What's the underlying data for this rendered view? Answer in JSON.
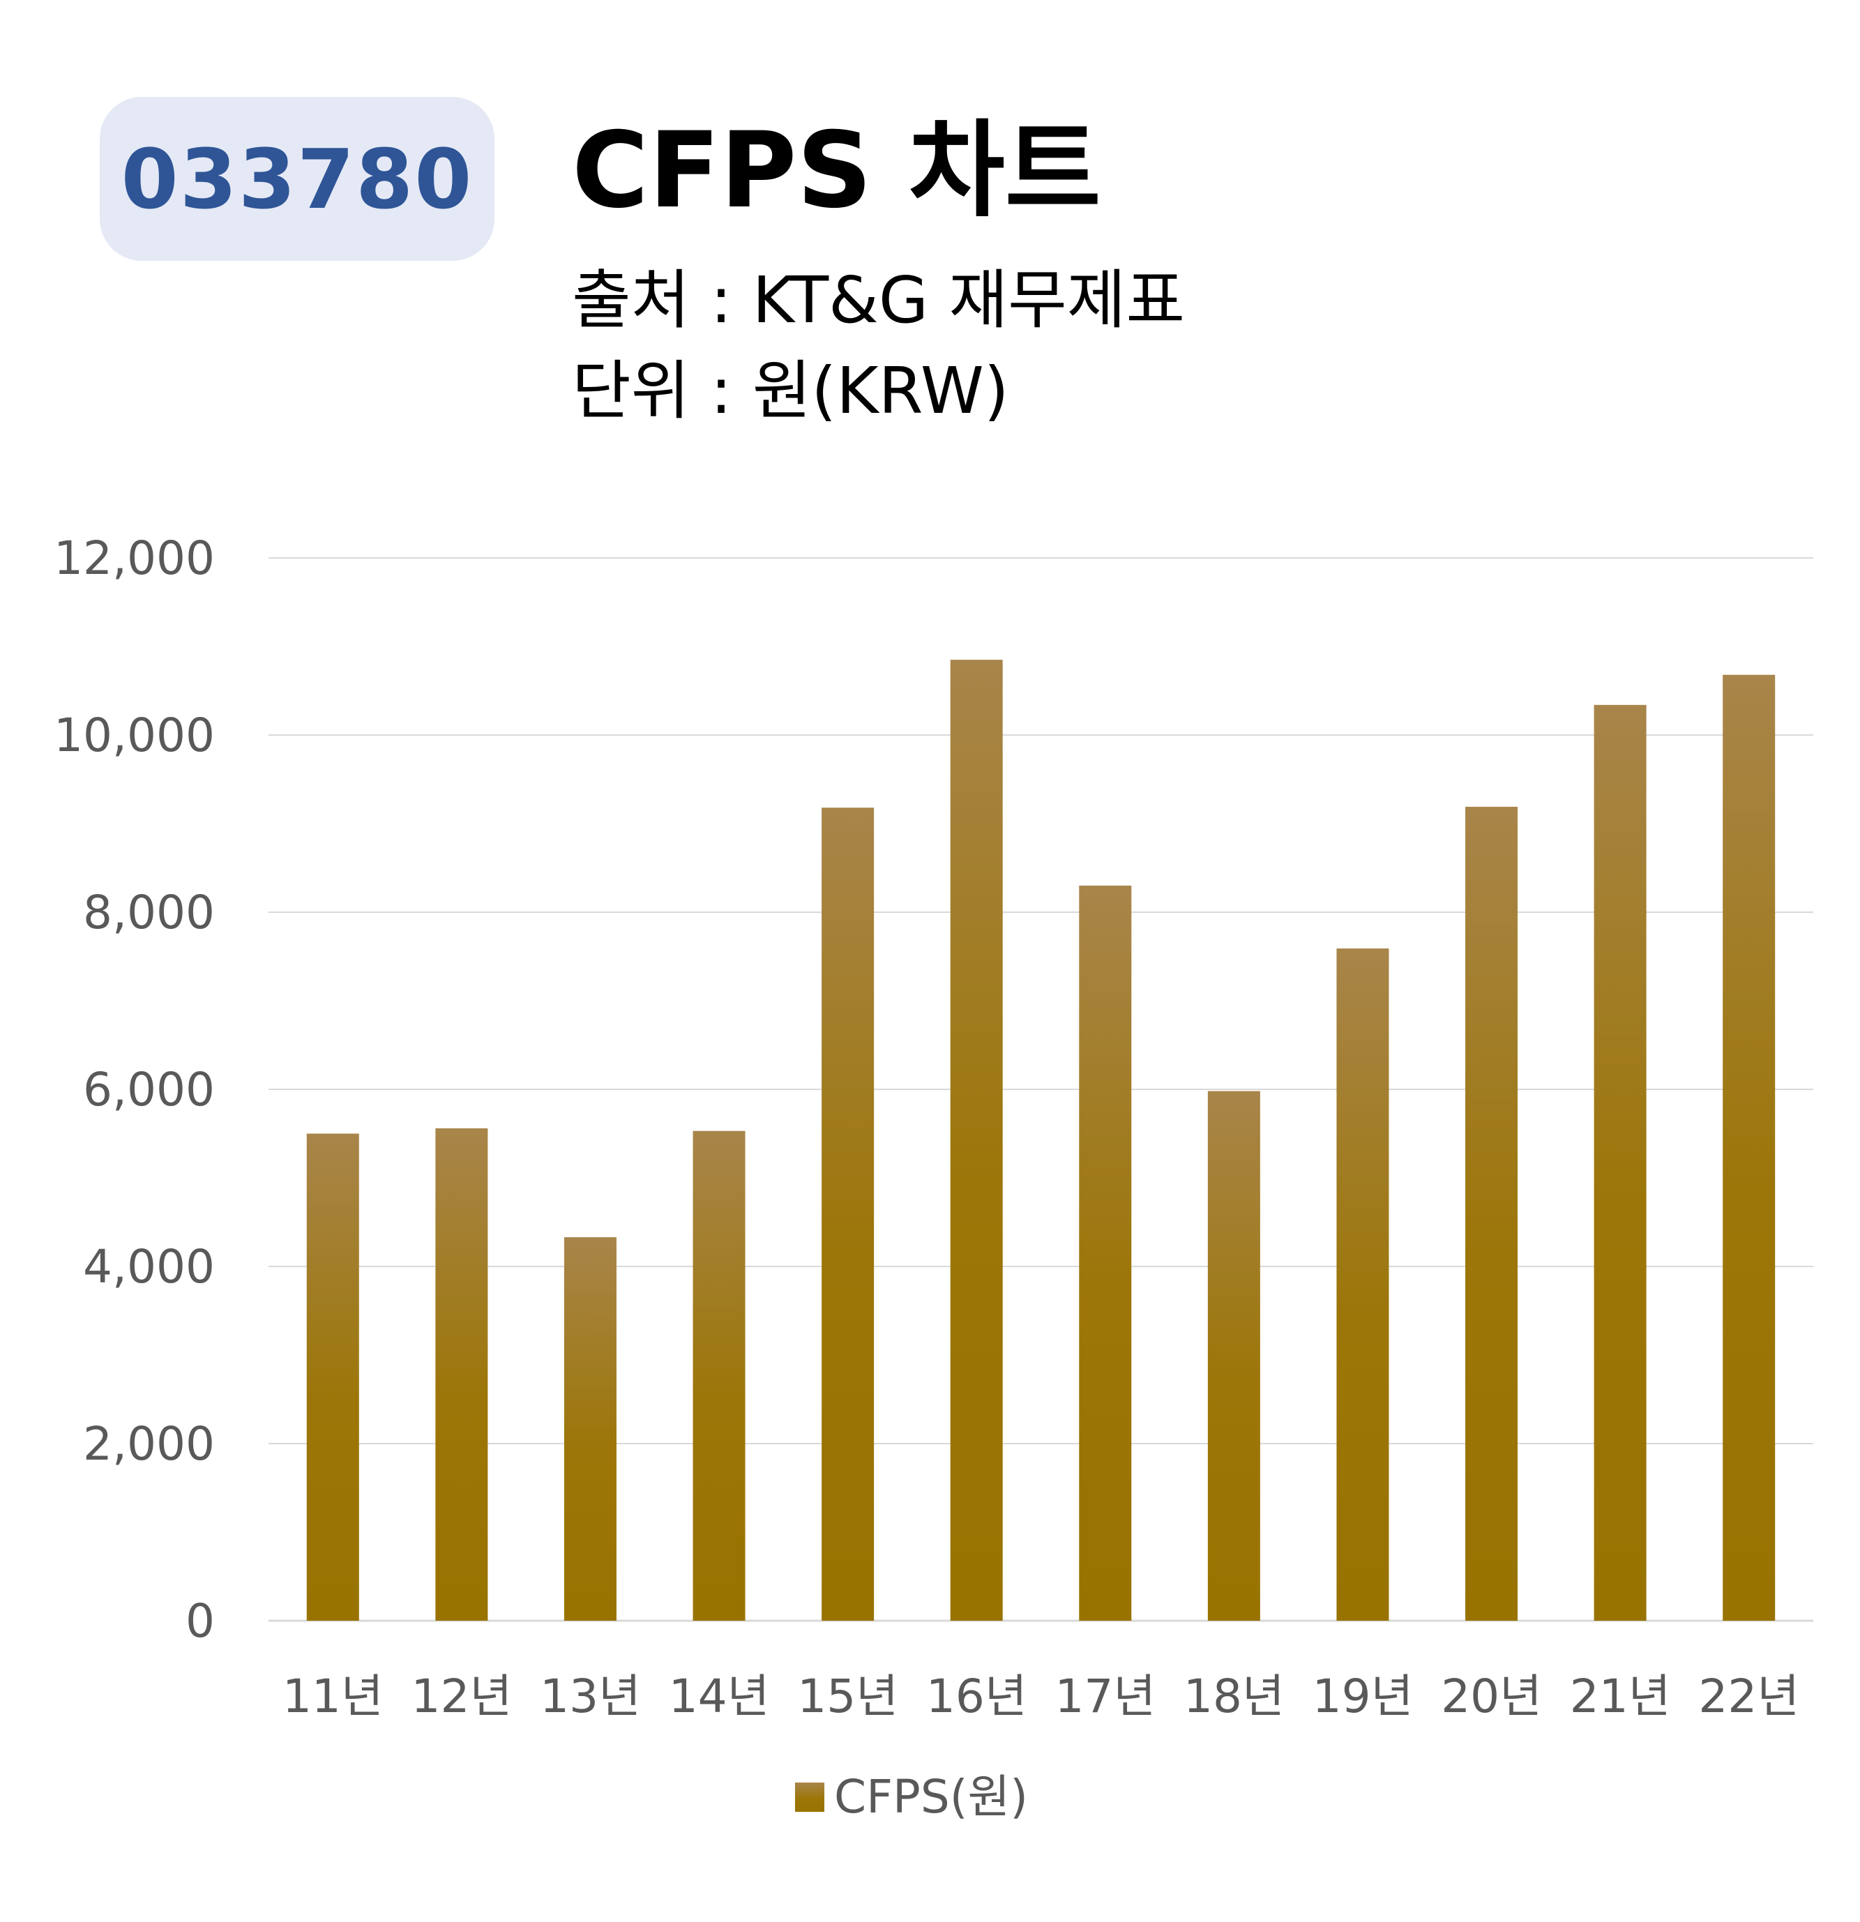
{
  "header": {
    "code": "033780",
    "title": "CFPS 차트",
    "source": "출처 : KT&G 재무제표",
    "unit": "단위 : 원(KRW)"
  },
  "colors": {
    "bar_top": "#a8854a",
    "bar_bottom": "#987300",
    "badge_bg": "#e4e9f5",
    "badge_text": "#2f5597",
    "gridline": "#d9d9d9",
    "axis_text": "#595959"
  },
  "chart_data": {
    "type": "bar",
    "categories": [
      "11년",
      "12년",
      "13년",
      "14년",
      "15년",
      "16년",
      "17년",
      "18년",
      "19년",
      "20년",
      "21년",
      "22년"
    ],
    "series": [
      {
        "name": "CFPS(원)",
        "values": [
          5500,
          5560,
          4330,
          5530,
          9180,
          10850,
          8300,
          5980,
          7590,
          9190,
          10340,
          10680
        ]
      }
    ],
    "yticks": [
      "0",
      "2,000",
      "4,000",
      "6,000",
      "8,000",
      "10,000",
      "12,000"
    ],
    "ylim": [
      0,
      12000
    ],
    "grid": true,
    "legend": "bottom"
  }
}
